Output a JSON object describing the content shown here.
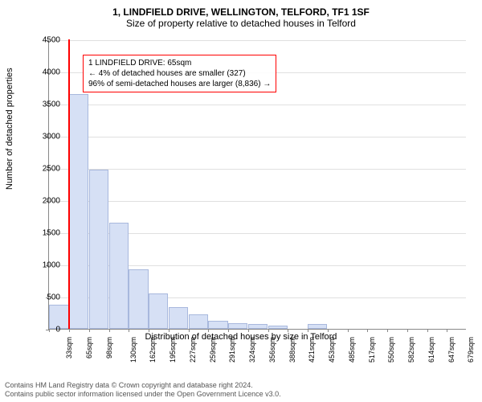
{
  "title_line1": "1, LINDFIELD DRIVE, WELLINGTON, TELFORD, TF1 1SF",
  "title_line2": "Size of property relative to detached houses in Telford",
  "y_axis_label": "Number of detached properties",
  "x_axis_label": "Distribution of detached houses by size in Telford",
  "footer_line1": "Contains HM Land Registry data © Crown copyright and database right 2024.",
  "footer_line2": "Contains public sector information licensed under the Open Government Licence v3.0.",
  "chart": {
    "type": "histogram",
    "ylim": [
      0,
      4500
    ],
    "ytick_step": 500,
    "y_ticks": [
      0,
      500,
      1000,
      1500,
      2000,
      2500,
      3000,
      3500,
      4000,
      4500
    ],
    "bar_color": "#d6e0f5",
    "bar_border_color": "#a8b8dd",
    "grid_color": "#e0e0e0",
    "marker_color": "#ff0000",
    "marker_category_index": 1,
    "categories": [
      "33sqm",
      "65sqm",
      "98sqm",
      "130sqm",
      "162sqm",
      "195sqm",
      "227sqm",
      "259sqm",
      "291sqm",
      "324sqm",
      "356sqm",
      "388sqm",
      "421sqm",
      "453sqm",
      "485sqm",
      "517sqm",
      "550sqm",
      "582sqm",
      "614sqm",
      "647sqm",
      "679sqm"
    ],
    "values": [
      370,
      3650,
      2480,
      1650,
      920,
      550,
      340,
      220,
      130,
      90,
      70,
      50,
      0,
      70,
      0,
      0,
      0,
      0,
      0,
      0,
      0
    ]
  },
  "annotation": {
    "line1": "1 LINDFIELD DRIVE: 65sqm",
    "line2": "← 4% of detached houses are smaller (327)",
    "line3": "96% of semi-detached houses are larger (8,836) →",
    "border_color": "#ff0000"
  }
}
